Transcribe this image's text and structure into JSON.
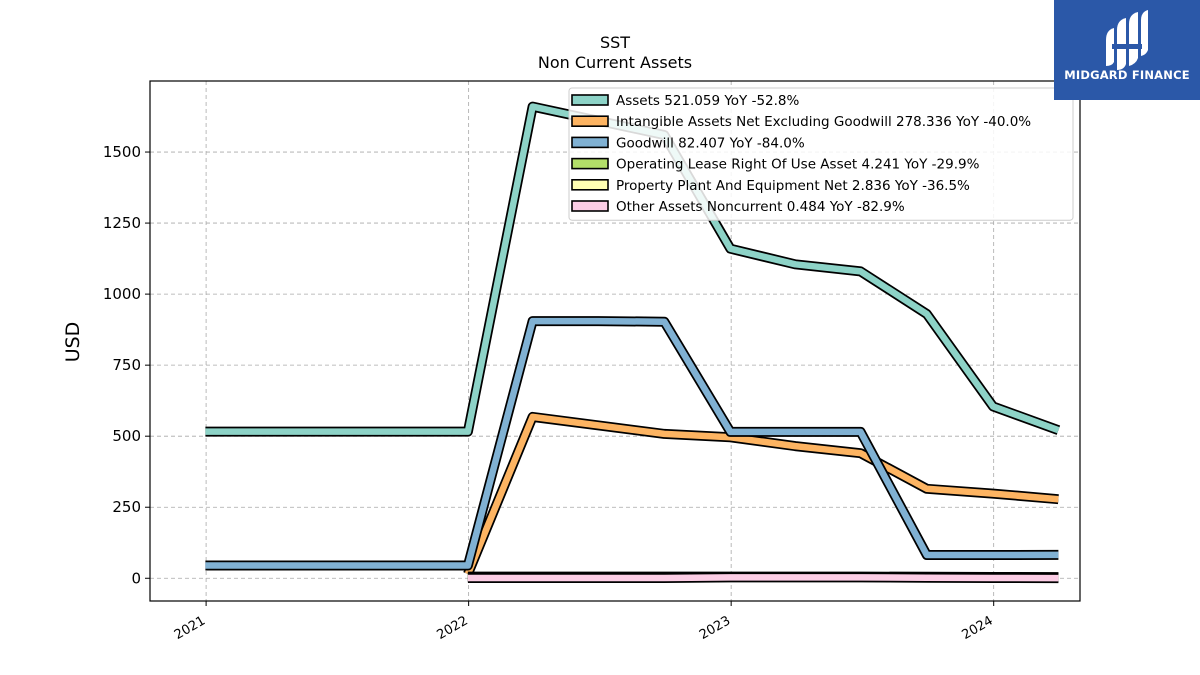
{
  "brand": {
    "name": "MIDGARD FINANCE",
    "bg_color": "#2b58a8"
  },
  "chart_data": {
    "type": "line",
    "title": "SST",
    "subtitle": "Non Current  Assets",
    "ylabel": "USD",
    "xlabel": "",
    "ylim": [
      -80,
      1750
    ],
    "yticks": [
      0,
      250,
      500,
      750,
      1000,
      1250,
      1500
    ],
    "xlim": [
      "2020-10-15",
      "2024-04-30"
    ],
    "xticks": [
      "2021",
      "2022",
      "2023",
      "2024"
    ],
    "grid": true,
    "legend_position": "top-right",
    "series": [
      {
        "name": "Assets",
        "legend": "Assets  521.059 YoY -52.8%",
        "color": "#8dd3c7",
        "x": [
          "2020-12-31",
          "2021-12-31",
          "2022-03-31",
          "2022-09-30",
          "2022-12-31",
          "2023-03-31",
          "2023-06-30",
          "2023-09-30",
          "2023-12-31",
          "2024-03-31"
        ],
        "values": [
          516,
          516,
          1660,
          1560,
          1160,
          1105,
          1080,
          930,
          605,
          521.059
        ]
      },
      {
        "name": "Intangible Assets Net Excluding Goodwill",
        "legend": "Intangible Assets Net Excluding Goodwill  278.336 YoY -40.0%",
        "color": "#fdb462",
        "x": [
          "2021-12-31",
          "2022-03-31",
          "2022-09-30",
          "2022-12-31",
          "2023-03-31",
          "2023-06-30",
          "2023-09-30",
          "2023-12-31",
          "2024-03-31"
        ],
        "values": [
          15,
          568,
          508,
          496,
          465,
          440,
          315,
          298,
          278.336
        ]
      },
      {
        "name": "Goodwill",
        "legend": "Goodwill  82.407 YoY -84.0%",
        "color": "#80b1d3",
        "x": [
          "2020-12-31",
          "2021-12-31",
          "2022-03-31",
          "2022-06-30",
          "2022-09-30",
          "2022-12-31",
          "2023-03-31",
          "2023-06-30",
          "2023-09-30",
          "2023-12-31",
          "2024-03-31"
        ],
        "values": [
          45,
          45,
          905,
          905,
          903,
          515,
          515,
          515,
          82,
          82,
          82.407
        ]
      },
      {
        "name": "Operating Lease Right Of Use Asset",
        "legend": "Operating Lease Right Of Use Asset  4.241 YoY -29.9%",
        "color": "#b3de69",
        "x": [
          "2021-12-31",
          "2022-03-31",
          "2022-06-30",
          "2022-09-30",
          "2022-12-31",
          "2023-03-31",
          "2023-06-30",
          "2023-09-30",
          "2023-12-31",
          "2024-03-31"
        ],
        "values": [
          6,
          6,
          6,
          6,
          6,
          6,
          6,
          5,
          4.5,
          4.241
        ]
      },
      {
        "name": "Property Plant And Equipment Net",
        "legend": "Property Plant And Equipment Net  2.836 YoY -36.5%",
        "color": "#ffffb3",
        "x": [
          "2021-12-31",
          "2022-03-31",
          "2022-06-30",
          "2022-09-30",
          "2022-12-31",
          "2023-03-31",
          "2023-06-30",
          "2023-09-30",
          "2023-12-31",
          "2024-03-31"
        ],
        "values": [
          4.5,
          4.5,
          4.5,
          4.5,
          4.5,
          4.5,
          4.5,
          3.5,
          3,
          2.836
        ]
      },
      {
        "name": "Other Assets Noncurrent",
        "legend": "Other Assets Noncurrent  0.484 YoY -82.9%",
        "color": "#fccde5",
        "x": [
          "2021-12-31",
          "2022-03-31",
          "2022-06-30",
          "2022-09-30",
          "2022-12-31",
          "2023-03-31",
          "2023-06-30",
          "2023-09-30",
          "2023-12-31",
          "2024-03-31"
        ],
        "values": [
          1,
          1,
          1,
          1,
          3,
          3,
          3,
          2,
          1,
          0.484
        ]
      }
    ]
  }
}
